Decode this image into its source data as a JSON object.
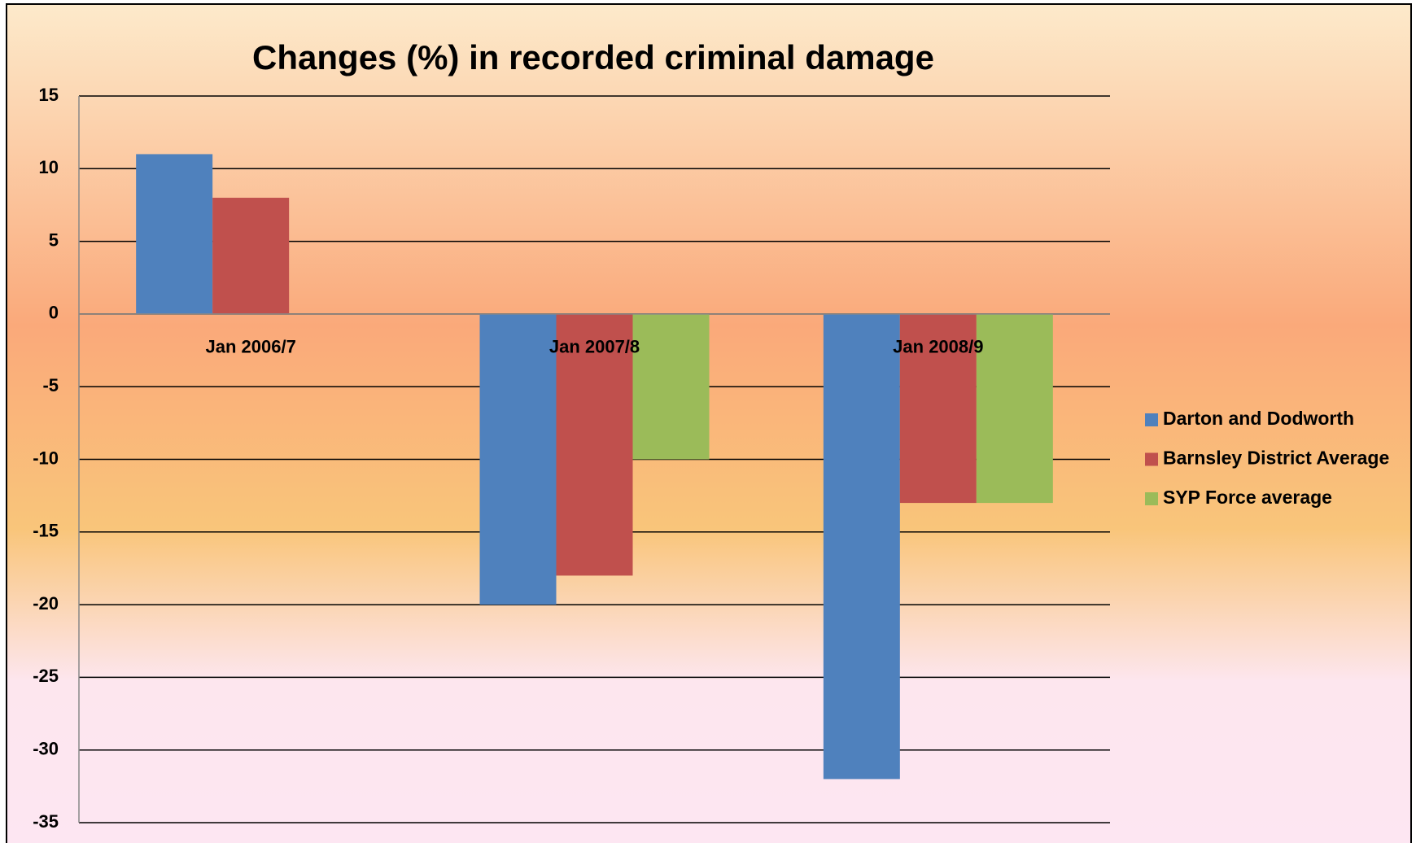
{
  "chart_data": {
    "type": "bar",
    "title": "Changes (%) in recorded criminal damage",
    "categories": [
      "Jan 2006/7",
      "Jan 2007/8",
      "Jan 2008/9"
    ],
    "series": [
      {
        "name": "Darton and Dodworth",
        "color": "#4f81bd",
        "values": [
          11,
          -20,
          -32
        ]
      },
      {
        "name": "Barnsley District Average",
        "color": "#c0504d",
        "values": [
          8,
          -18,
          -13
        ]
      },
      {
        "name": "SYP Force average",
        "color": "#9bbb59",
        "values": [
          null,
          -10,
          -13
        ]
      }
    ],
    "ylim": [
      -35,
      15
    ],
    "yticks": [
      -35,
      -30,
      -25,
      -20,
      -15,
      -10,
      -5,
      0,
      5,
      10,
      15
    ],
    "grid": true,
    "legend": "right"
  }
}
